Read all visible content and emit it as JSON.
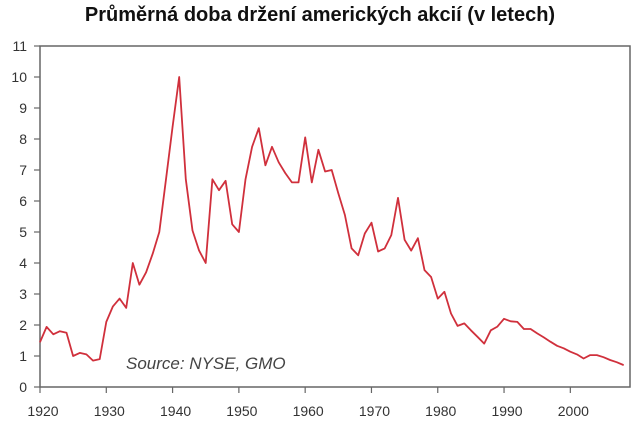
{
  "chart_data": {
    "type": "line",
    "title": "Průměrná doba držení amerických akcií (v letech)",
    "annotation": "Source: NYSE, GMO",
    "xlabel": "",
    "ylabel": "",
    "xlim": [
      1920,
      2009
    ],
    "ylim": [
      0,
      11
    ],
    "x_ticks": [
      1920,
      1930,
      1940,
      1950,
      1960,
      1970,
      1980,
      1990,
      2000
    ],
    "y_ticks": [
      0,
      1,
      2,
      3,
      4,
      5,
      6,
      7,
      8,
      9,
      10,
      11
    ],
    "grid": false,
    "line_color": "#d0303c",
    "x": [
      1920,
      1921,
      1922,
      1923,
      1924,
      1925,
      1926,
      1927,
      1928,
      1929,
      1930,
      1931,
      1932,
      1933,
      1934,
      1935,
      1936,
      1937,
      1938,
      1939,
      1940,
      1941,
      1942,
      1943,
      1944,
      1945,
      1946,
      1947,
      1948,
      1949,
      1950,
      1951,
      1952,
      1953,
      1954,
      1955,
      1956,
      1957,
      1958,
      1959,
      1960,
      1961,
      1962,
      1963,
      1964,
      1965,
      1966,
      1967,
      1968,
      1969,
      1970,
      1971,
      1972,
      1973,
      1974,
      1975,
      1976,
      1977,
      1978,
      1979,
      1980,
      1981,
      1982,
      1983,
      1984,
      1985,
      1986,
      1987,
      1988,
      1989,
      1990,
      1991,
      1992,
      1993,
      1994,
      1995,
      1996,
      1997,
      1998,
      1999,
      2000,
      2001,
      2002,
      2003,
      2004,
      2005,
      2006,
      2007,
      2008
    ],
    "y": [
      1.45,
      1.94,
      1.7,
      1.8,
      1.75,
      1.0,
      1.1,
      1.05,
      0.85,
      0.9,
      2.1,
      2.6,
      2.85,
      2.55,
      4.0,
      3.3,
      3.7,
      4.3,
      5.0,
      6.7,
      8.4,
      10.0,
      6.7,
      5.05,
      4.4,
      4.0,
      6.7,
      6.35,
      6.65,
      5.25,
      5.0,
      6.7,
      7.75,
      8.35,
      7.15,
      7.75,
      7.25,
      6.9,
      6.6,
      6.6,
      8.05,
      6.6,
      7.65,
      6.95,
      7.0,
      6.25,
      5.55,
      4.47,
      4.25,
      4.95,
      5.3,
      4.37,
      4.47,
      4.9,
      6.1,
      4.75,
      4.4,
      4.8,
      3.77,
      3.55,
      2.85,
      3.07,
      2.37,
      1.97,
      2.05,
      1.83,
      1.62,
      1.4,
      1.83,
      1.95,
      2.2,
      2.12,
      2.1,
      1.87,
      1.87,
      1.73,
      1.6,
      1.46,
      1.33,
      1.25,
      1.14,
      1.05,
      0.92,
      1.03,
      1.03,
      0.96,
      0.87,
      0.8,
      0.71
    ]
  }
}
